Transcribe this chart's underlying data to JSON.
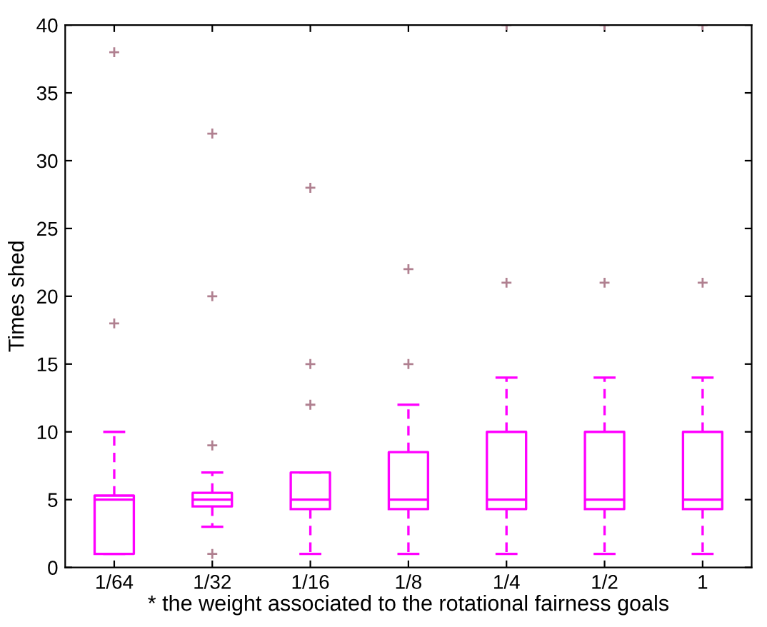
{
  "chart_data": {
    "type": "box",
    "xlabel": "* the weight associated to the rotational fairness goals",
    "ylabel": "Times shed",
    "categories": [
      "1/64",
      "1/32",
      "1/16",
      "1/8",
      "1/4",
      "1/2",
      "1"
    ],
    "color": "#ff00ff",
    "grid": false,
    "ylim": [
      0,
      40
    ],
    "yticks": [
      0,
      5,
      10,
      15,
      20,
      25,
      30,
      35,
      40
    ],
    "boxes": [
      {
        "low": 1,
        "q1": 1,
        "median": 5,
        "q3": 5.3,
        "high": 10,
        "outliers": [
          18,
          38
        ]
      },
      {
        "low": 3,
        "q1": 4.5,
        "median": 5,
        "q3": 5.5,
        "high": 7,
        "outliers": [
          1,
          9,
          20,
          32
        ]
      },
      {
        "low": 1,
        "q1": 4.3,
        "median": 5,
        "q3": 7,
        "high": 7,
        "outliers": [
          12,
          15,
          28
        ]
      },
      {
        "low": 1,
        "q1": 4.3,
        "median": 5,
        "q3": 8.5,
        "high": 12,
        "outliers": [
          15,
          22
        ]
      },
      {
        "low": 1,
        "q1": 4.3,
        "median": 5,
        "q3": 10,
        "high": 14,
        "outliers": [
          21,
          40
        ]
      },
      {
        "low": 1,
        "q1": 4.3,
        "median": 5,
        "q3": 10,
        "high": 14,
        "outliers": [
          21,
          40
        ]
      },
      {
        "low": 1,
        "q1": 4.3,
        "median": 5,
        "q3": 10,
        "high": 14,
        "outliers": [
          21,
          40
        ]
      }
    ]
  }
}
